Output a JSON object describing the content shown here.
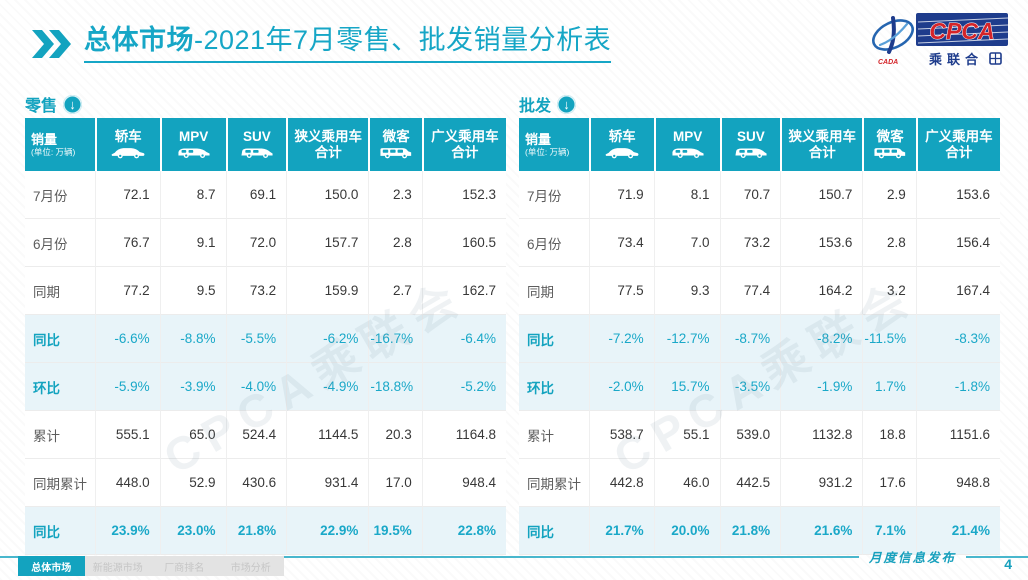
{
  "page": {
    "title_bold": "总体市场",
    "title_rest": "-2021年7月零售、批发销量分析表",
    "footer_label": "月度信息发布",
    "page_number": "4",
    "watermark": "CPCA乘联会"
  },
  "logo": {
    "acronym": "CPCA",
    "cn_name": "乘联合",
    "emblem_caption": "CADA"
  },
  "colors": {
    "accent": "#13a3bf",
    "pct_text": "#1aa8c8",
    "alt_row_bg": "#e8f4f9",
    "logo_blue": "#1e3c8c",
    "logo_red": "#d42429"
  },
  "table_header": {
    "label": "销量",
    "unit": "(单位: 万辆)",
    "columns": [
      {
        "key": "sedan",
        "label": "轿车",
        "icon": "sedan"
      },
      {
        "key": "mpv",
        "label": "MPV",
        "icon": "mpv"
      },
      {
        "key": "suv",
        "label": "SUV",
        "icon": "suv"
      },
      {
        "key": "narrow-total",
        "label": "狭义乘用车合计",
        "lines": [
          "狭义乘用车",
          "合计"
        ]
      },
      {
        "key": "van",
        "label": "微客",
        "icon": "van"
      },
      {
        "key": "broad-total",
        "label": "广义乘用车合计",
        "lines": [
          "广义乘用车",
          "合计"
        ]
      }
    ]
  },
  "tables": {
    "retail": {
      "title": "零售",
      "rows": [
        {
          "label": "7月份",
          "cls": "normal",
          "values": [
            "72.1",
            "8.7",
            "69.1",
            "150.0",
            "2.3",
            "152.3"
          ]
        },
        {
          "label": "6月份",
          "cls": "normal",
          "values": [
            "76.7",
            "9.1",
            "72.0",
            "157.7",
            "2.8",
            "160.5"
          ]
        },
        {
          "label": "同期",
          "cls": "normal",
          "values": [
            "77.2",
            "9.5",
            "73.2",
            "159.9",
            "2.7",
            "162.7"
          ]
        },
        {
          "label": "同比",
          "cls": "pct",
          "values": [
            "-6.6%",
            "-8.8%",
            "-5.5%",
            "-6.2%",
            "-16.7%",
            "-6.4%"
          ]
        },
        {
          "label": "环比",
          "cls": "pct",
          "values": [
            "-5.9%",
            "-3.9%",
            "-4.0%",
            "-4.9%",
            "-18.8%",
            "-5.2%"
          ]
        },
        {
          "label": "累计",
          "cls": "normal",
          "values": [
            "555.1",
            "65.0",
            "524.4",
            "1144.5",
            "20.3",
            "1164.8"
          ]
        },
        {
          "label": "同期累计",
          "cls": "normal",
          "values": [
            "448.0",
            "52.9",
            "430.6",
            "931.4",
            "17.0",
            "948.4"
          ]
        },
        {
          "label": "同比",
          "cls": "pct",
          "bold": true,
          "values": [
            "23.9%",
            "23.0%",
            "21.8%",
            "22.9%",
            "19.5%",
            "22.8%"
          ]
        }
      ]
    },
    "wholesale": {
      "title": "批发",
      "rows": [
        {
          "label": "7月份",
          "cls": "normal",
          "values": [
            "71.9",
            "8.1",
            "70.7",
            "150.7",
            "2.9",
            "153.6"
          ]
        },
        {
          "label": "6月份",
          "cls": "normal",
          "values": [
            "73.4",
            "7.0",
            "73.2",
            "153.6",
            "2.8",
            "156.4"
          ]
        },
        {
          "label": "同期",
          "cls": "normal",
          "values": [
            "77.5",
            "9.3",
            "77.4",
            "164.2",
            "3.2",
            "167.4"
          ]
        },
        {
          "label": "同比",
          "cls": "pct",
          "values": [
            "-7.2%",
            "-12.7%",
            "-8.7%",
            "-8.2%",
            "-11.5%",
            "-8.3%"
          ]
        },
        {
          "label": "环比",
          "cls": "pct",
          "values": [
            "-2.0%",
            "15.7%",
            "-3.5%",
            "-1.9%",
            "1.7%",
            "-1.8%"
          ]
        },
        {
          "label": "累计",
          "cls": "normal",
          "values": [
            "538.7",
            "55.1",
            "539.0",
            "1132.8",
            "18.8",
            "1151.6"
          ]
        },
        {
          "label": "同期累计",
          "cls": "normal",
          "values": [
            "442.8",
            "46.0",
            "442.5",
            "931.2",
            "17.6",
            "948.8"
          ]
        },
        {
          "label": "同比",
          "cls": "pct",
          "bold": true,
          "values": [
            "21.7%",
            "20.0%",
            "21.8%",
            "21.6%",
            "7.1%",
            "21.4%"
          ]
        }
      ]
    }
  },
  "tabs": [
    {
      "label": "总体市场",
      "active": true
    },
    {
      "label": "新能源市场",
      "active": false
    },
    {
      "label": "厂商排名",
      "active": false
    },
    {
      "label": "市场分析",
      "active": false
    }
  ]
}
